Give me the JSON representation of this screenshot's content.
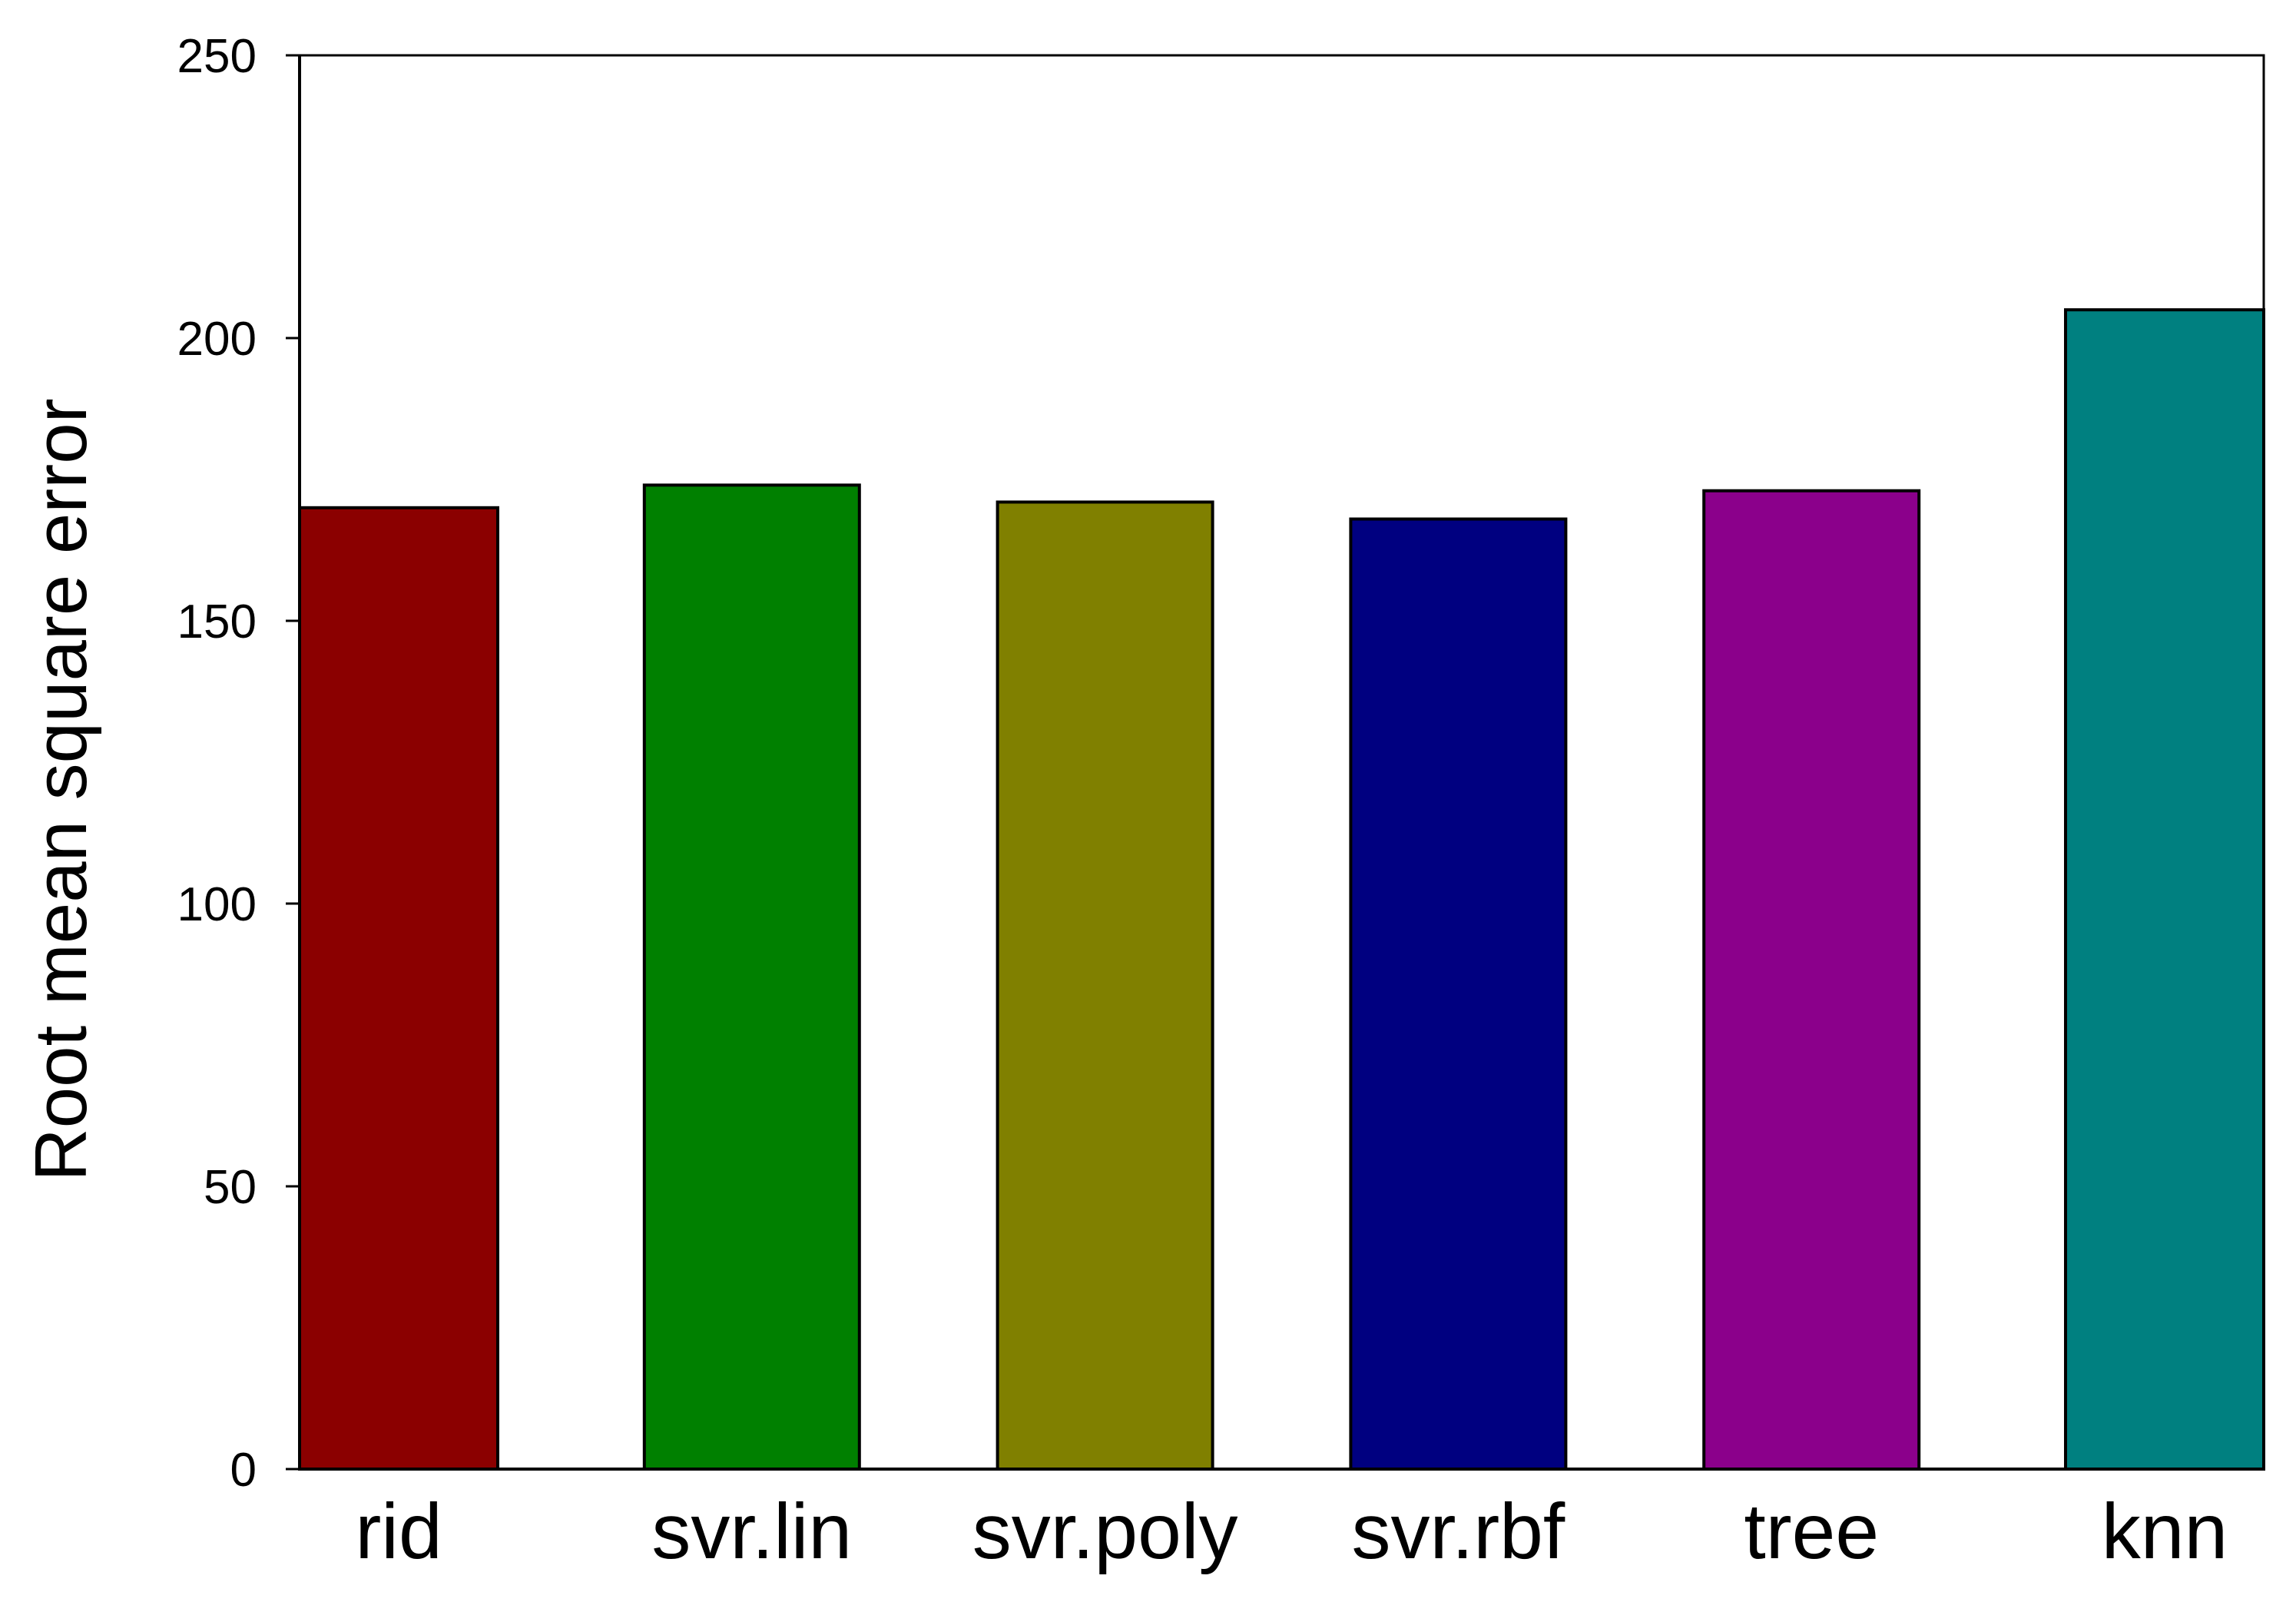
{
  "chart_data": {
    "type": "bar",
    "title": "",
    "xlabel": "",
    "ylabel": "Root mean square error",
    "ylim": [
      0,
      250
    ],
    "yticks": [
      0,
      50,
      100,
      150,
      200,
      250
    ],
    "grid": false,
    "categories": [
      "rid",
      "svr.lin",
      "svr.poly",
      "svr.rbf",
      "tree",
      "knn"
    ],
    "values": [
      170,
      174,
      171,
      168,
      173,
      205
    ],
    "colors": [
      "#8b0000",
      "#008000",
      "#808000",
      "#000080",
      "#8b008b",
      "#008080"
    ]
  }
}
